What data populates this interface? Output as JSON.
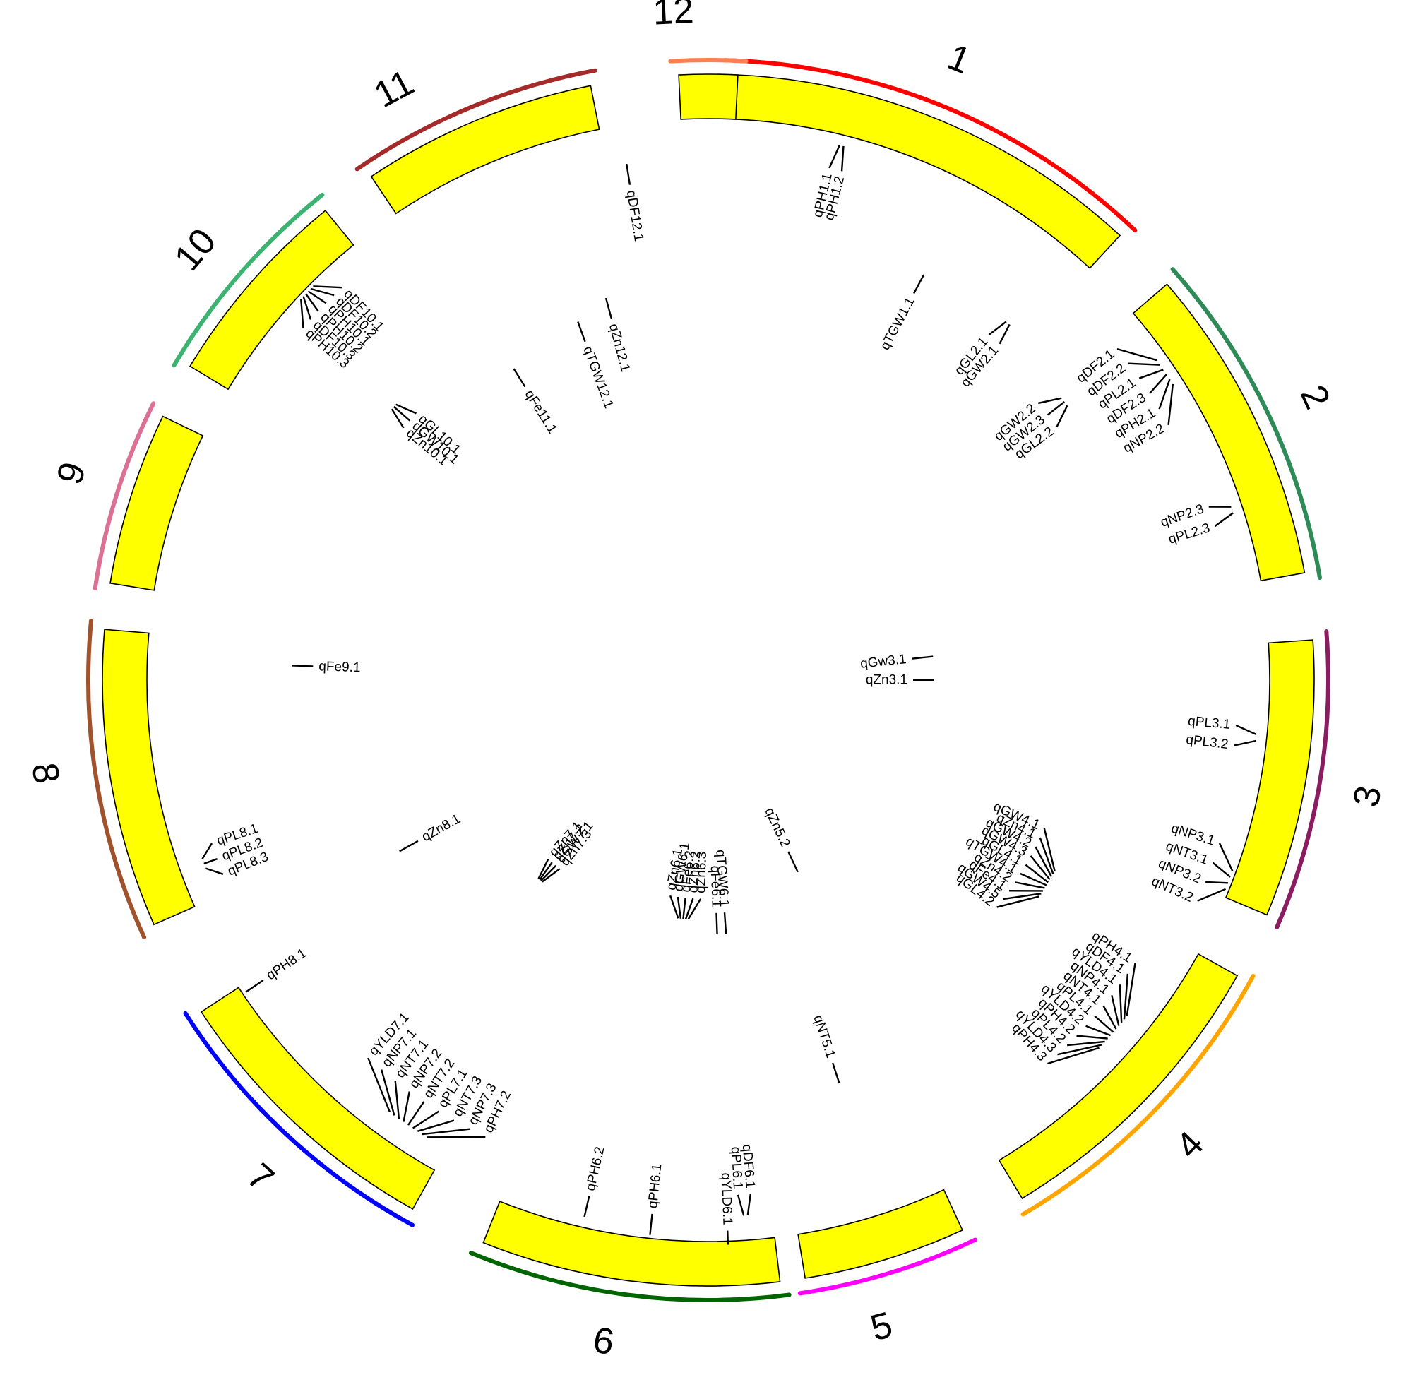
{
  "chromosomes": [
    {
      "label": "1",
      "color": "#ff0000"
    },
    {
      "label": "2",
      "color": "#2e8b57"
    },
    {
      "label": "3",
      "color": "#8b1c62"
    },
    {
      "label": "4",
      "color": "#ffa500"
    },
    {
      "label": "5",
      "color": "#ff00ff"
    },
    {
      "label": "6",
      "color": "#006400"
    },
    {
      "label": "7",
      "color": "#0000ff"
    },
    {
      "label": "8",
      "color": "#a0522d"
    },
    {
      "label": "9",
      "color": "#db7093"
    },
    {
      "label": "10",
      "color": "#3cb371"
    },
    {
      "label": "11",
      "color": "#a52a2a"
    },
    {
      "label": "12",
      "color": "#ff7f50"
    }
  ],
  "segment_fill": "#ffff00",
  "qtls": [
    {
      "chr": "1",
      "names": [
        "qPH1.1",
        "qPH1.2"
      ]
    },
    {
      "chr": "1",
      "names": [
        "qTGW1.1"
      ]
    },
    {
      "chr": "2",
      "names": [
        "qDF2.1",
        "qDF2.2",
        "qPL2.1",
        "qDF2.3",
        "qPH2.1",
        "qNP2.2"
      ]
    },
    {
      "chr": "2",
      "names": [
        "qGL2.1",
        "qGW2.1"
      ]
    },
    {
      "chr": "2",
      "names": [
        "qGW2.2",
        "qGW2.3",
        "qGL2.2"
      ]
    },
    {
      "chr": "2",
      "names": [
        "qNP2.3",
        "qPL2.3"
      ]
    },
    {
      "chr": "3",
      "names": [
        "qGw3.1"
      ]
    },
    {
      "chr": "3",
      "names": [
        "qZn3.1"
      ]
    },
    {
      "chr": "3",
      "names": [
        "qPL3.1",
        "qPL3.2"
      ]
    },
    {
      "chr": "3",
      "names": [
        "qNP3.1",
        "qNT3.1",
        "qNP3.2",
        "qNT3.2"
      ]
    },
    {
      "chr": "4",
      "names": [
        "qGW4.1",
        "qZn4.1",
        "qGW4.2",
        "qGW4.3",
        "qGL4.1",
        "qTGW4.1",
        "qZn4.2",
        "qFe4.1",
        "qGW4.5",
        "qGL4.2"
      ]
    },
    {
      "chr": "4",
      "names": [
        "qPH4.1",
        "qDF4.1",
        "qYLD4.1",
        "qNP4.1",
        "qNT4.1",
        "qPL4.1",
        "qYLD4.2",
        "qPH4.2",
        "qPL4.2",
        "qYLD4.3",
        "qPH4.3"
      ]
    },
    {
      "chr": "5",
      "names": [
        "qZn5.2"
      ]
    },
    {
      "chr": "5",
      "names": [
        "qNT5.1"
      ]
    },
    {
      "chr": "6",
      "names": [
        "qTGW6.1"
      ]
    },
    {
      "chr": "6",
      "names": [
        "qFe6.1"
      ]
    },
    {
      "chr": "6",
      "names": [
        "qZn6.3",
        "qZn6.2",
        "qFe6.2",
        "qGW6.1",
        "qZn6.1"
      ]
    },
    {
      "chr": "6",
      "names": [
        "qDF6.1",
        "qPL6.1"
      ]
    },
    {
      "chr": "6",
      "names": [
        "qYLD6.1"
      ]
    },
    {
      "chr": "6",
      "names": [
        "qPH6.1"
      ]
    },
    {
      "chr": "6",
      "names": [
        "qPH6.2"
      ]
    },
    {
      "chr": "7",
      "names": [
        "qZn7.3",
        "qGW7.1",
        "qZn7.2",
        "qZn7.1"
      ]
    },
    {
      "chr": "7",
      "names": [
        "qPH7.2",
        "qNP7.3",
        "qNT7.3",
        "qPL7.1",
        "qNT7.2",
        "qNP7.2",
        "qNT7.1",
        "qNP7.1",
        "qYLD7.1"
      ]
    },
    {
      "chr": "8",
      "names": [
        "qZn8.1"
      ]
    },
    {
      "chr": "8",
      "names": [
        "qPL8.3",
        "qPL8.2",
        "qPL8.1"
      ]
    },
    {
      "chr": "8",
      "names": [
        "qPH8.1"
      ]
    },
    {
      "chr": "9",
      "names": [
        "qFe9.1"
      ]
    },
    {
      "chr": "10",
      "names": [
        "qPH10.3",
        "qDF10.3",
        "qPH10.2",
        "qPH10.1",
        "qDF10.2",
        "qDF10.1"
      ]
    },
    {
      "chr": "10",
      "names": [
        "qZn10.1",
        "qGW10.1",
        "qGL10.1"
      ]
    },
    {
      "chr": "11",
      "names": [
        "qFe11.1"
      ]
    },
    {
      "chr": "12",
      "names": [
        "qDF12.1"
      ]
    },
    {
      "chr": "12",
      "names": [
        "qZn12.1"
      ]
    },
    {
      "chr": "12",
      "names": [
        "qTGW12.1"
      ]
    }
  ]
}
